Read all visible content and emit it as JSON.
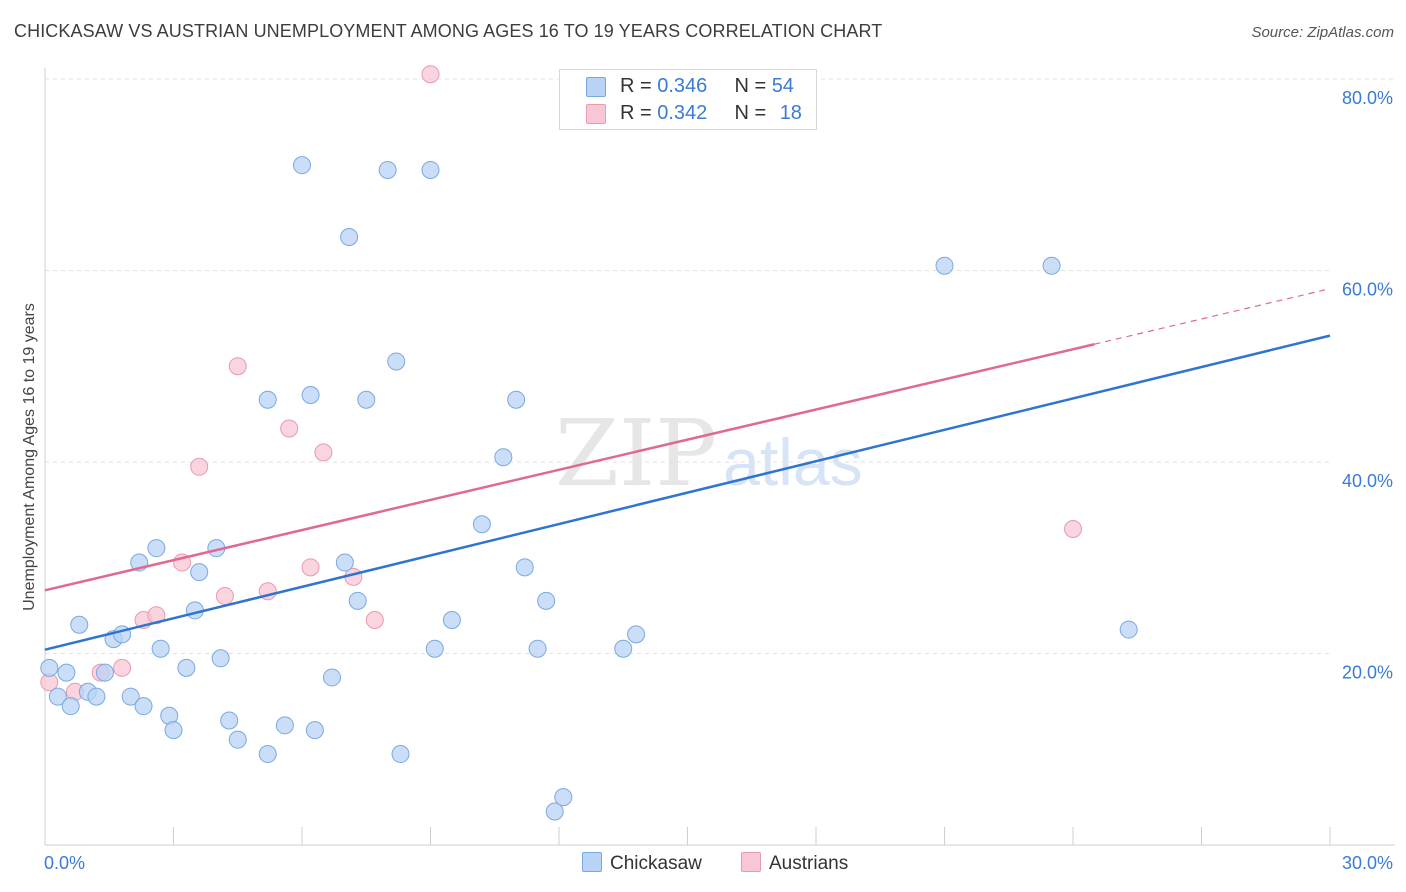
{
  "header": {
    "title": "CHICKASAW VS AUSTRIAN UNEMPLOYMENT AMONG AGES 16 TO 19 YEARS CORRELATION CHART",
    "source": "Source: ZipAtlas.com"
  },
  "watermark": {
    "zip": "ZIP",
    "atlas": "atlas"
  },
  "legend": {
    "r_label": "R =",
    "n_label": "N =",
    "items": [
      {
        "r": "0.346",
        "n": "54"
      },
      {
        "r": "0.342",
        "n": "18"
      }
    ]
  },
  "colors": {
    "chickasaw_fill": "#b8d3f5",
    "chickasaw_stroke": "#7aa9e0",
    "chickasaw_line": "#2f74d0",
    "austrians_fill": "#f8c6d4",
    "austrians_stroke": "#e89ab1",
    "austrians_line": "#e06a8f",
    "tick_label": "#3a7bd5",
    "grid": "#e2e2e2"
  },
  "chart_data": {
    "type": "scatter",
    "title": "CHICKASAW VS AUSTRIAN UNEMPLOYMENT AMONG AGES 16 TO 19 YEARS CORRELATION CHART",
    "xlabel": "",
    "ylabel": "Unemployment Among Ages 16 to 19 years",
    "xlim": [
      0,
      30
    ],
    "ylim": [
      0,
      80
    ],
    "x_tick_labels": [
      "0.0%",
      "30.0%"
    ],
    "y_ticks": [
      20,
      40,
      60,
      80
    ],
    "y_tick_labels": [
      "20.0%",
      "40.0%",
      "60.0%",
      "80.0%"
    ],
    "grid": true,
    "legend_position": "bottom-center",
    "series": [
      {
        "name": "Chickasaw",
        "r": 0.346,
        "n": 54,
        "trend": {
          "x0": 0,
          "y0": 20.4,
          "x1": 30,
          "y1": 53.2
        },
        "points": [
          [
            0.1,
            18.5
          ],
          [
            0.3,
            15.5
          ],
          [
            0.5,
            18
          ],
          [
            0.6,
            14.5
          ],
          [
            0.8,
            23
          ],
          [
            1.0,
            16
          ],
          [
            1.2,
            15.5
          ],
          [
            1.4,
            18
          ],
          [
            1.6,
            21.5
          ],
          [
            1.8,
            22
          ],
          [
            2.0,
            15.5
          ],
          [
            2.2,
            29.5
          ],
          [
            2.3,
            14.5
          ],
          [
            2.6,
            31
          ],
          [
            2.7,
            20.5
          ],
          [
            2.9,
            13.5
          ],
          [
            3.0,
            12
          ],
          [
            3.3,
            18.5
          ],
          [
            3.5,
            24.5
          ],
          [
            3.6,
            28.5
          ],
          [
            4.0,
            31
          ],
          [
            4.1,
            19.5
          ],
          [
            4.3,
            13
          ],
          [
            4.5,
            11
          ],
          [
            5.2,
            46.5
          ],
          [
            5.2,
            9.5
          ],
          [
            5.6,
            12.5
          ],
          [
            6.0,
            71
          ],
          [
            6.2,
            47
          ],
          [
            6.3,
            12
          ],
          [
            6.7,
            17.5
          ],
          [
            7.0,
            29.5
          ],
          [
            7.1,
            63.5
          ],
          [
            7.3,
            25.5
          ],
          [
            7.5,
            46.5
          ],
          [
            8.0,
            70.5
          ],
          [
            8.2,
            50.5
          ],
          [
            8.3,
            9.5
          ],
          [
            9.0,
            70.5
          ],
          [
            9.1,
            20.5
          ],
          [
            9.5,
            23.5
          ],
          [
            10.2,
            33.5
          ],
          [
            10.7,
            40.5
          ],
          [
            11.0,
            46.5
          ],
          [
            11.2,
            29
          ],
          [
            11.5,
            20.5
          ],
          [
            11.7,
            25.5
          ],
          [
            11.9,
            3.5
          ],
          [
            12.1,
            5
          ],
          [
            13.5,
            20.5
          ],
          [
            13.8,
            22
          ],
          [
            21.0,
            60.5
          ],
          [
            23.5,
            60.5
          ],
          [
            25.3,
            22.5
          ]
        ]
      },
      {
        "name": "Austrians",
        "r": 0.342,
        "n": 18,
        "trend": {
          "x0": 0,
          "y0": 26.6,
          "x1": 24.5,
          "y1": 52.3
        },
        "trend_extension": {
          "x0": 24.5,
          "y0": 52.3,
          "x1": 30,
          "y1": 58.1
        },
        "points": [
          [
            0.1,
            17
          ],
          [
            0.7,
            16
          ],
          [
            1.3,
            18
          ],
          [
            1.8,
            18.5
          ],
          [
            2.3,
            23.5
          ],
          [
            2.6,
            24
          ],
          [
            3.2,
            29.5
          ],
          [
            3.6,
            39.5
          ],
          [
            4.2,
            26
          ],
          [
            4.5,
            50
          ],
          [
            5.2,
            26.5
          ],
          [
            5.7,
            43.5
          ],
          [
            6.2,
            29
          ],
          [
            6.5,
            41
          ],
          [
            7.2,
            28
          ],
          [
            7.7,
            23.5
          ],
          [
            9.0,
            80.5
          ],
          [
            24.0,
            33
          ]
        ]
      }
    ]
  }
}
